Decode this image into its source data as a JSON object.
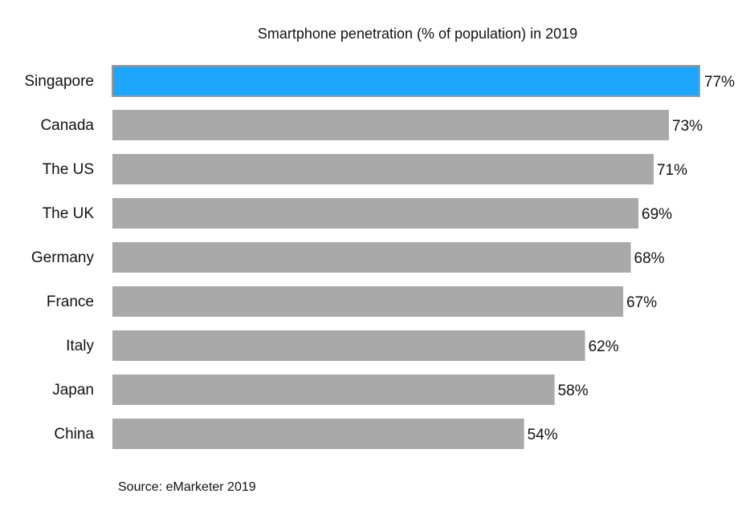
{
  "chart_data": {
    "type": "bar",
    "orientation": "horizontal",
    "title": "Smartphone penetration (% of population) in 2019",
    "categories": [
      "Singapore",
      "Canada",
      "The US",
      "The UK",
      "Germany",
      "France",
      "Italy",
      "Japan",
      "China"
    ],
    "values": [
      77,
      73,
      71,
      69,
      68,
      67,
      62,
      58,
      54
    ],
    "value_labels": [
      "77%",
      "73%",
      "71%",
      "69%",
      "68%",
      "67%",
      "62%",
      "58%",
      "54%"
    ],
    "unit": "%",
    "highlight": "Singapore",
    "colors": {
      "highlight": "#1ea5fc",
      "default": "#a9a9a9",
      "highlight_border": "#9a9a9a"
    },
    "xlim": [
      0,
      77
    ],
    "grid": false,
    "legend": "none",
    "source": "Source: eMarketer 2019"
  }
}
